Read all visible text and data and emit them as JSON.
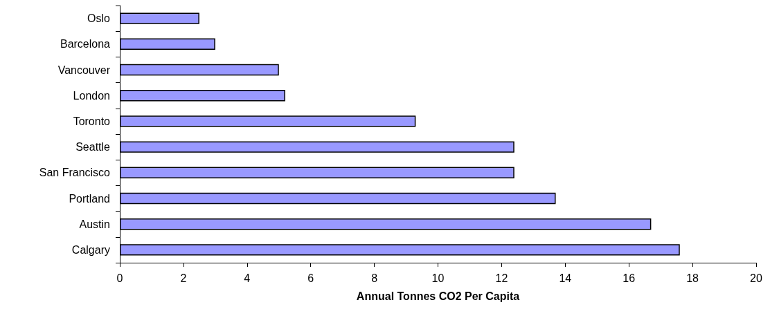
{
  "chart_data": {
    "type": "bar",
    "orientation": "horizontal",
    "xlabel": "Annual Tonnes CO2 Per Capita",
    "categories": [
      "Oslo",
      "Barcelona",
      "Vancouver",
      "London",
      "Toronto",
      "Seattle",
      "San Francisco",
      "Portland",
      "Austin",
      "Calgary"
    ],
    "values": [
      2.5,
      3.0,
      5.0,
      5.2,
      9.3,
      12.4,
      12.4,
      13.7,
      16.7,
      17.6
    ],
    "color": "#9999ff",
    "xlim": [
      0,
      20
    ],
    "xticks": [
      0,
      2,
      4,
      6,
      8,
      10,
      12,
      14,
      16,
      18,
      20
    ],
    "grid": false
  }
}
